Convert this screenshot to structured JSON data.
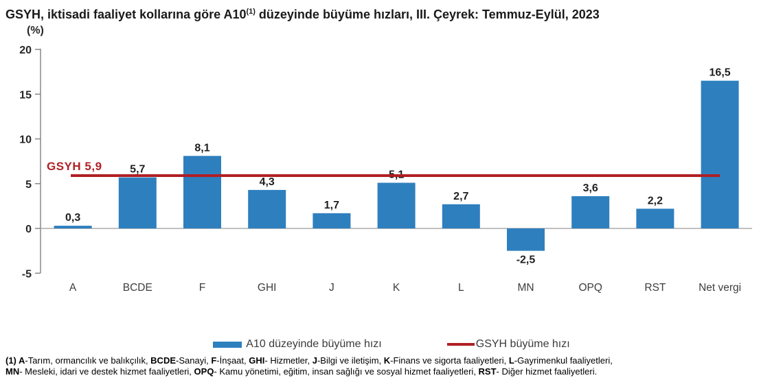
{
  "title": {
    "prefix": "GSYH, iktisadi faaliyet kollarına göre A10",
    "superscript": "(1)",
    "suffix": " düzeyinde büyüme hızları, III. Çeyrek: Temmuz-Eylül, 2023",
    "full": "GSYH, iktisadi faaliyet kollarına göre A10(1) düzeyinde büyüme hızları, III. Çeyrek: Temmuz-Eylül, 2023"
  },
  "chart_data": {
    "type": "bar",
    "title": "GSYH, iktisadi faaliyet kollarına göre A10(1) düzeyinde büyüme hızları, III. Çeyrek: Temmuz-Eylül, 2023",
    "unit": "(%)",
    "categories": [
      "A",
      "BCDE",
      "F",
      "GHI",
      "J",
      "K",
      "L",
      "MN",
      "OPQ",
      "RST",
      "Net vergi"
    ],
    "values": [
      0.3,
      5.7,
      8.1,
      4.3,
      1.7,
      5.1,
      2.7,
      -2.5,
      3.6,
      2.2,
      16.5
    ],
    "value_labels": [
      "0,3",
      "5,7",
      "8,1",
      "4,3",
      "1,7",
      "5,1",
      "2,7",
      "-2,5",
      "3,6",
      "2,2",
      "16,5"
    ],
    "ylim": [
      -5,
      20
    ],
    "yticks": [
      20,
      15,
      10,
      5,
      0,
      -5
    ],
    "ytick_labels": [
      "20",
      "15",
      "10",
      "5",
      "0",
      "-5"
    ],
    "grid": false,
    "bar_color": "#2E7FBE",
    "axis_color": "#808080",
    "baseline_color": "#ababab",
    "reference_line": {
      "value": 5.9,
      "label": "GSYH 5,9",
      "color": "#B01F24"
    },
    "legend": [
      {
        "label": "A10 düzeyinde büyüme hızı",
        "color": "#2E7FBE",
        "marker": "bar"
      },
      {
        "label": "GSYH büyüme hızı",
        "color": "#B01F24",
        "marker": "line"
      }
    ],
    "legend_position": "bottom-center"
  },
  "footnote": {
    "lines": [
      [
        {
          "t": "(1) A",
          "b": true
        },
        {
          "t": "-Tarım, ormancılık ve balıkçılık, ",
          "b": false
        },
        {
          "t": "BCDE",
          "b": true
        },
        {
          "t": "-Sanayi, ",
          "b": false
        },
        {
          "t": "F",
          "b": true
        },
        {
          "t": "-İnşaat, ",
          "b": false
        },
        {
          "t": "GHI",
          "b": true
        },
        {
          "t": "- Hizmetler, ",
          "b": false
        },
        {
          "t": "J",
          "b": true
        },
        {
          "t": "-Bilgi ve iletişim, ",
          "b": false
        },
        {
          "t": "K",
          "b": true
        },
        {
          "t": "-Finans ve sigorta faaliyetleri, ",
          "b": false
        },
        {
          "t": "L",
          "b": true
        },
        {
          "t": "-Gayrimenkul faaliyetleri,",
          "b": false
        }
      ],
      [
        {
          "t": "MN",
          "b": true
        },
        {
          "t": "- Mesleki, idari ve destek hizmet faaliyetleri, ",
          "b": false
        },
        {
          "t": "OPQ",
          "b": true
        },
        {
          "t": "- Kamu yönetimi, eğitim, insan sağlığı ve sosyal hizmet faaliyetleri, ",
          "b": false
        },
        {
          "t": "RST",
          "b": true
        },
        {
          "t": "- Diğer hizmet faaliyetleri.",
          "b": false
        }
      ]
    ]
  }
}
